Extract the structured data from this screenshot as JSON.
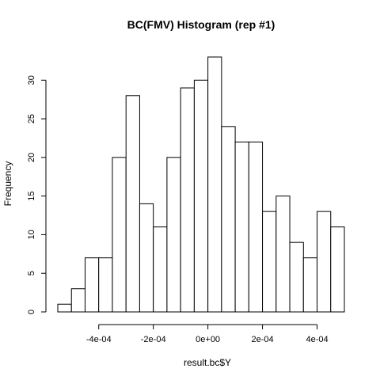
{
  "chart_data": {
    "type": "bar",
    "title": "BC(FMV) Histogram (rep #1)",
    "xlabel": "result.bc$Y",
    "ylabel": "Frequency",
    "bin_width": 5e-05,
    "bins": [
      {
        "start": -0.00055,
        "end": -0.0005,
        "count": 1
      },
      {
        "start": -0.0005,
        "end": -0.00045,
        "count": 3
      },
      {
        "start": -0.00045,
        "end": -0.0004,
        "count": 7
      },
      {
        "start": -0.0004,
        "end": -0.00035,
        "count": 7
      },
      {
        "start": -0.00035,
        "end": -0.0003,
        "count": 20
      },
      {
        "start": -0.0003,
        "end": -0.00025,
        "count": 28
      },
      {
        "start": -0.00025,
        "end": -0.0002,
        "count": 14
      },
      {
        "start": -0.0002,
        "end": -0.00015,
        "count": 11
      },
      {
        "start": -0.00015,
        "end": -0.0001,
        "count": 20
      },
      {
        "start": -0.0001,
        "end": -5e-05,
        "count": 29
      },
      {
        "start": -5e-05,
        "end": 0.0,
        "count": 30
      },
      {
        "start": 0.0,
        "end": 5e-05,
        "count": 33
      },
      {
        "start": 5e-05,
        "end": 0.0001,
        "count": 24
      },
      {
        "start": 0.0001,
        "end": 0.00015,
        "count": 22
      },
      {
        "start": 0.00015,
        "end": 0.0002,
        "count": 22
      },
      {
        "start": 0.0002,
        "end": 0.00025,
        "count": 13
      },
      {
        "start": 0.00025,
        "end": 0.0003,
        "count": 15
      },
      {
        "start": 0.0003,
        "end": 0.00035,
        "count": 9
      },
      {
        "start": 0.00035,
        "end": 0.0004,
        "count": 7
      },
      {
        "start": 0.0004,
        "end": 0.00045,
        "count": 13
      },
      {
        "start": 0.00045,
        "end": 0.0005,
        "count": 11
      }
    ],
    "xticks": [
      {
        "value": -0.0004,
        "label": "-4e-04"
      },
      {
        "value": -0.0002,
        "label": "-2e-04"
      },
      {
        "value": 0.0,
        "label": "0e+00"
      },
      {
        "value": 0.0002,
        "label": "2e-04"
      },
      {
        "value": 0.0004,
        "label": "4e-04"
      }
    ],
    "yticks": [
      {
        "value": 0,
        "label": "0"
      },
      {
        "value": 5,
        "label": "5"
      },
      {
        "value": 10,
        "label": "10"
      },
      {
        "value": 15,
        "label": "15"
      },
      {
        "value": 20,
        "label": "20"
      },
      {
        "value": 25,
        "label": "25"
      },
      {
        "value": 30,
        "label": "30"
      }
    ],
    "xlim": [
      -0.00055,
      0.0005
    ],
    "ylim": [
      0,
      33
    ],
    "grid": false,
    "bar_fill": "#ffffff",
    "bar_stroke": "#000000"
  }
}
